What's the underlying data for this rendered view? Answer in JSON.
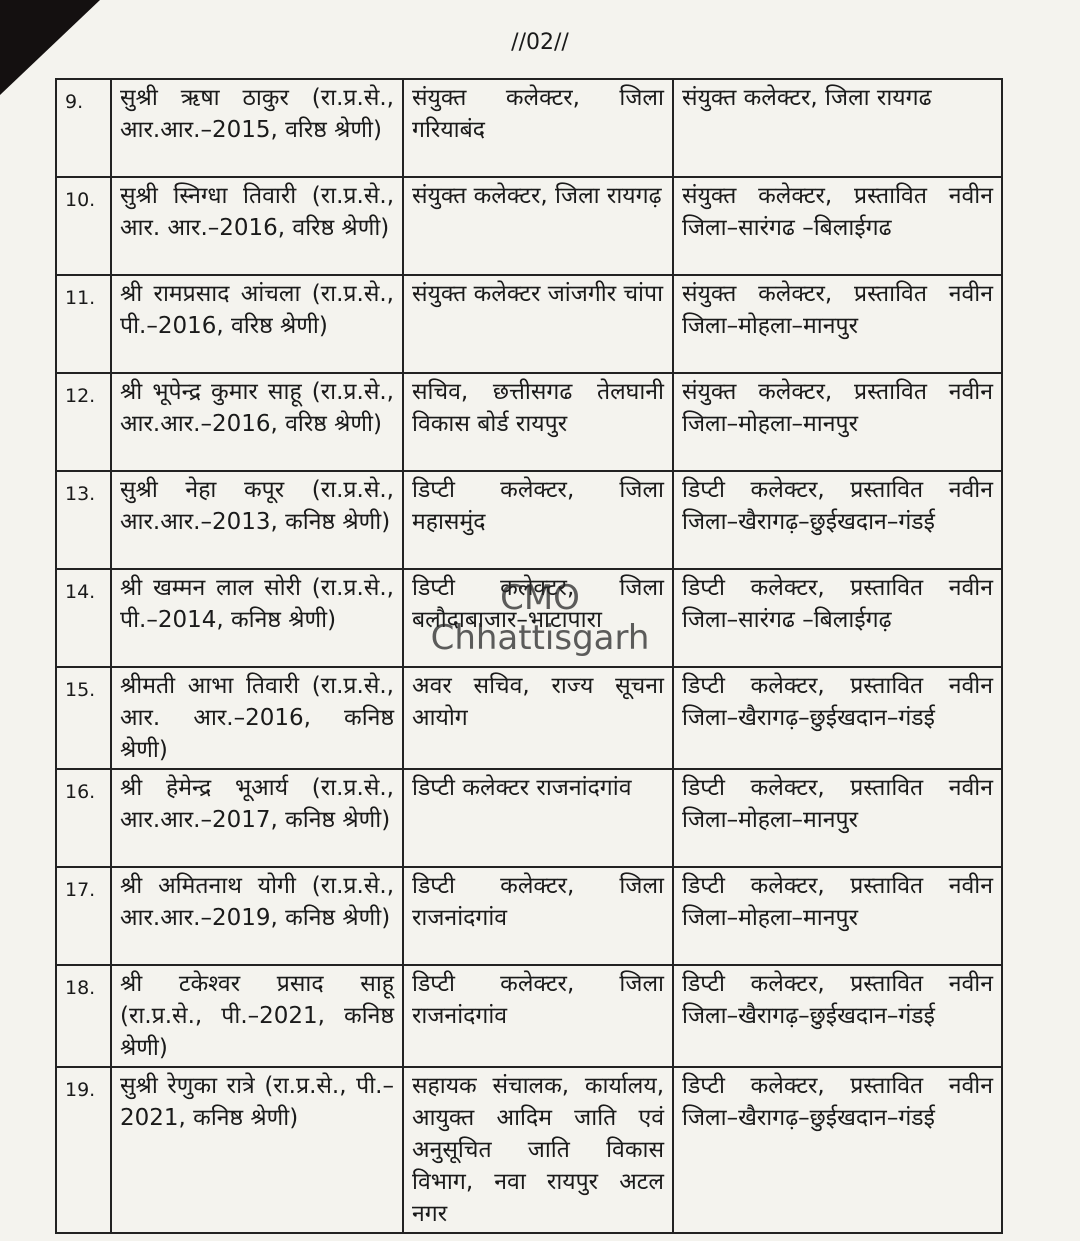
{
  "header": {
    "page_number": "//02//"
  },
  "table": {
    "rows": [
      [
        "9.",
        "सुश्री ऋषा ठाकुर (रा.प्र.से., आर.आर.–2015, वरिष्ठ श्रेणी)",
        "संयुक्त कलेक्टर, जिला गरियाबंद",
        "संयुक्त कलेक्टर, जिला रायगढ"
      ],
      [
        "10.",
        "सुश्री स्निग्धा तिवारी (रा.प्र.से., आर. आर.–2016, वरिष्ठ श्रेणी)",
        "संयुक्त कलेक्टर, जिला रायगढ़",
        "संयुक्त कलेक्टर, प्रस्तावित नवीन जिला–सारंगढ –बिलाईगढ"
      ],
      [
        "11.",
        "श्री रामप्रसाद आंचला (रा.प्र.से., पी.–2016, वरिष्ठ श्रेणी)",
        "संयुक्त कलेक्टर जांजगीर चांपा",
        "संयुक्त कलेक्टर, प्रस्तावित नवीन जिला–मोहला–मानपुर"
      ],
      [
        "12.",
        "श्री भूपेन्द्र कुमार साहू (रा.प्र.से., आर.आर.–2016, वरिष्ठ श्रेणी)",
        "सचिव, छत्तीसगढ तेलघानी विकास बोर्ड रायपुर",
        "संयुक्त कलेक्टर, प्रस्तावित नवीन जिला–मोहला–मानपुर"
      ],
      [
        "13.",
        "सुश्री नेहा कपूर (रा.प्र.से., आर.आर.–2013, कनिष्ठ श्रेणी)",
        "डिप्टी कलेक्टर, जिला महासमुंद",
        "डिप्टी कलेक्टर, प्रस्तावित नवीन जिला–खैरागढ़–छुईखदान–गंडई"
      ],
      [
        "14.",
        "श्री खम्मन लाल सोरी (रा.प्र.से., पी.–2014, कनिष्ठ श्रेणी)",
        "डिप्टी कलेक्टर, जिला बलौदाबाजार–भाटापारा",
        "डिप्टी कलेक्टर, प्रस्तावित नवीन जिला–सारंगढ –बिलाईगढ़"
      ],
      [
        "15.",
        "श्रीमती आभा तिवारी (रा.प्र.से., आर. आर.–2016, कनिष्ठ श्रेणी)",
        "अवर सचिव, राज्य सूचना आयोग",
        "डिप्टी कलेक्टर, प्रस्तावित नवीन जिला–खैरागढ़–छुईखदान–गंडई"
      ],
      [
        "16.",
        "श्री हेमेन्द्र भूआर्य (रा.प्र.से., आर.आर.–2017, कनिष्ठ श्रेणी)",
        "डिप्टी कलेक्टर राजनांदगांव",
        "डिप्टी कलेक्टर, प्रस्तावित नवीन जिला–मोहला–मानपुर"
      ],
      [
        "17.",
        "श्री अमितनाथ योगी (रा.प्र.से., आर.आर.–2019, कनिष्ठ श्रेणी)",
        "डिप्टी कलेक्टर, जिला राजनांदगांव",
        "डिप्टी कलेक्टर, प्रस्तावित नवीन जिला–मोहला–मानपुर"
      ],
      [
        "18.",
        "श्री टकेश्वर प्रसाद साहू (रा.प्र.से., पी.–2021, कनिष्ठ श्रेणी)",
        "डिप्टी कलेक्टर, जिला राजनांदगांव",
        "डिप्टी कलेक्टर, प्रस्तावित नवीन जिला–खैरागढ़–छुईखदान–गंडई"
      ],
      [
        "19.",
        "सुश्री रेणुका रात्रे (रा.प्र.से., पी.–2021, कनिष्ठ श्रेणी)",
        "सहायक संचालक, कार्यालय, आयुक्त आदिम जाति एवं अनुसूचित जाति विकास विभाग, नवा रायपुर अटल नगर",
        "डिप्टी कलेक्टर, प्रस्तावित नवीन जिला–खैरागढ़–छुईखदान–गंडई"
      ]
    ]
  },
  "watermark": [
    "CMO",
    "Chhattisgarh"
  ]
}
